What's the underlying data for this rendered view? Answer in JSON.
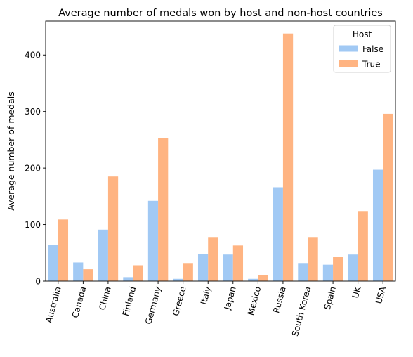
{
  "chart_data": {
    "type": "bar",
    "title": "Average number of medals won by host and non-host countries",
    "xlabel": "",
    "ylabel": "Average number of medals",
    "categories": [
      "Australia",
      "Canada",
      "China",
      "Finland",
      "Germany",
      "Greece",
      "Italy",
      "Japan",
      "Mexico",
      "Russia",
      "South Korea",
      "Spain",
      "UK",
      "USA"
    ],
    "series": [
      {
        "name": "False",
        "color": "#a1c9f4",
        "values": [
          64,
          33,
          91,
          7,
          142,
          4,
          48,
          47,
          4,
          166,
          32,
          29,
          47,
          197
        ]
      },
      {
        "name": "True",
        "color": "#ffb482",
        "values": [
          109,
          21,
          185,
          28,
          253,
          32,
          78,
          63,
          10,
          438,
          78,
          43,
          124,
          296
        ]
      }
    ],
    "ylim": [
      0,
      460
    ],
    "yticks": [
      0,
      100,
      200,
      300,
      400
    ],
    "legend": {
      "title": "Host",
      "placement": "top-right"
    },
    "grid": false
  }
}
